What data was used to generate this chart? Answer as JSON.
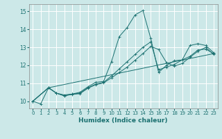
{
  "xlabel": "Humidex (Indice chaleur)",
  "ylabel": "",
  "bg_color": "#cce8e8",
  "grid_color": "#ffffff",
  "line_color": "#1a7070",
  "xlim": [
    -0.5,
    23.5
  ],
  "ylim": [
    9.6,
    15.4
  ],
  "yticks": [
    10,
    11,
    12,
    13,
    14,
    15
  ],
  "xticks": [
    0,
    1,
    2,
    3,
    4,
    5,
    6,
    7,
    8,
    9,
    10,
    11,
    12,
    13,
    14,
    15,
    16,
    17,
    18,
    19,
    20,
    21,
    22,
    23
  ],
  "line1_x": [
    0,
    1,
    2,
    3,
    4,
    5,
    6,
    7,
    8,
    9,
    10,
    11,
    12,
    13,
    14,
    15,
    16,
    17,
    18,
    19,
    20,
    21,
    22,
    23
  ],
  "line1_y": [
    10.0,
    9.85,
    10.75,
    10.45,
    10.35,
    10.4,
    10.5,
    10.8,
    11.05,
    11.1,
    12.2,
    13.6,
    14.1,
    14.8,
    15.05,
    13.5,
    11.6,
    12.0,
    12.25,
    12.3,
    13.1,
    13.2,
    13.1,
    12.7
  ],
  "line2_x": [
    0,
    2,
    3,
    4,
    5,
    6,
    7,
    8,
    9,
    10,
    11,
    12,
    13,
    14,
    15,
    16,
    17,
    18,
    19,
    20,
    21,
    22,
    23
  ],
  "line2_y": [
    10.0,
    10.75,
    10.45,
    10.3,
    10.4,
    10.45,
    10.75,
    10.95,
    11.05,
    11.4,
    11.8,
    12.2,
    12.6,
    13.0,
    13.3,
    11.75,
    11.9,
    12.05,
    12.3,
    12.5,
    12.85,
    12.9,
    12.65
  ],
  "line3_x": [
    0,
    2,
    23
  ],
  "line3_y": [
    10.0,
    10.75,
    12.65
  ],
  "line4_x": [
    0,
    2,
    3,
    4,
    5,
    6,
    7,
    8,
    9,
    10,
    11,
    12,
    13,
    14,
    15,
    16,
    17,
    18,
    19,
    20,
    21,
    22,
    23
  ],
  "line4_y": [
    10.0,
    10.75,
    10.45,
    10.3,
    10.38,
    10.42,
    10.72,
    10.92,
    11.02,
    11.3,
    11.6,
    11.9,
    12.28,
    12.65,
    13.05,
    12.88,
    12.15,
    11.95,
    12.1,
    12.45,
    12.78,
    13.0,
    12.6
  ],
  "marker_points_line1": [
    [
      2,
      10.75
    ],
    [
      3,
      10.45
    ],
    [
      4,
      10.35
    ],
    [
      5,
      10.4
    ],
    [
      6,
      10.5
    ],
    [
      7,
      10.8
    ],
    [
      8,
      11.05
    ],
    [
      9,
      11.1
    ],
    [
      10,
      12.2
    ],
    [
      11,
      13.6
    ],
    [
      12,
      14.1
    ],
    [
      13,
      14.8
    ],
    [
      14,
      15.05
    ],
    [
      15,
      13.5
    ],
    [
      16,
      11.6
    ],
    [
      17,
      12.0
    ],
    [
      18,
      12.25
    ],
    [
      19,
      12.3
    ],
    [
      20,
      13.1
    ],
    [
      21,
      13.2
    ],
    [
      22,
      13.1
    ],
    [
      23,
      12.7
    ]
  ],
  "marker_points_line2": [
    [
      2,
      10.75
    ],
    [
      3,
      10.45
    ],
    [
      4,
      10.3
    ],
    [
      5,
      10.4
    ],
    [
      6,
      10.45
    ],
    [
      7,
      10.75
    ],
    [
      8,
      10.95
    ],
    [
      9,
      11.05
    ],
    [
      10,
      11.4
    ],
    [
      11,
      11.8
    ],
    [
      12,
      12.2
    ],
    [
      13,
      12.6
    ],
    [
      14,
      13.0
    ],
    [
      15,
      13.3
    ],
    [
      16,
      11.75
    ],
    [
      17,
      11.9
    ],
    [
      18,
      12.05
    ],
    [
      19,
      12.3
    ],
    [
      20,
      12.5
    ],
    [
      21,
      12.85
    ],
    [
      22,
      12.9
    ],
    [
      23,
      12.65
    ]
  ]
}
